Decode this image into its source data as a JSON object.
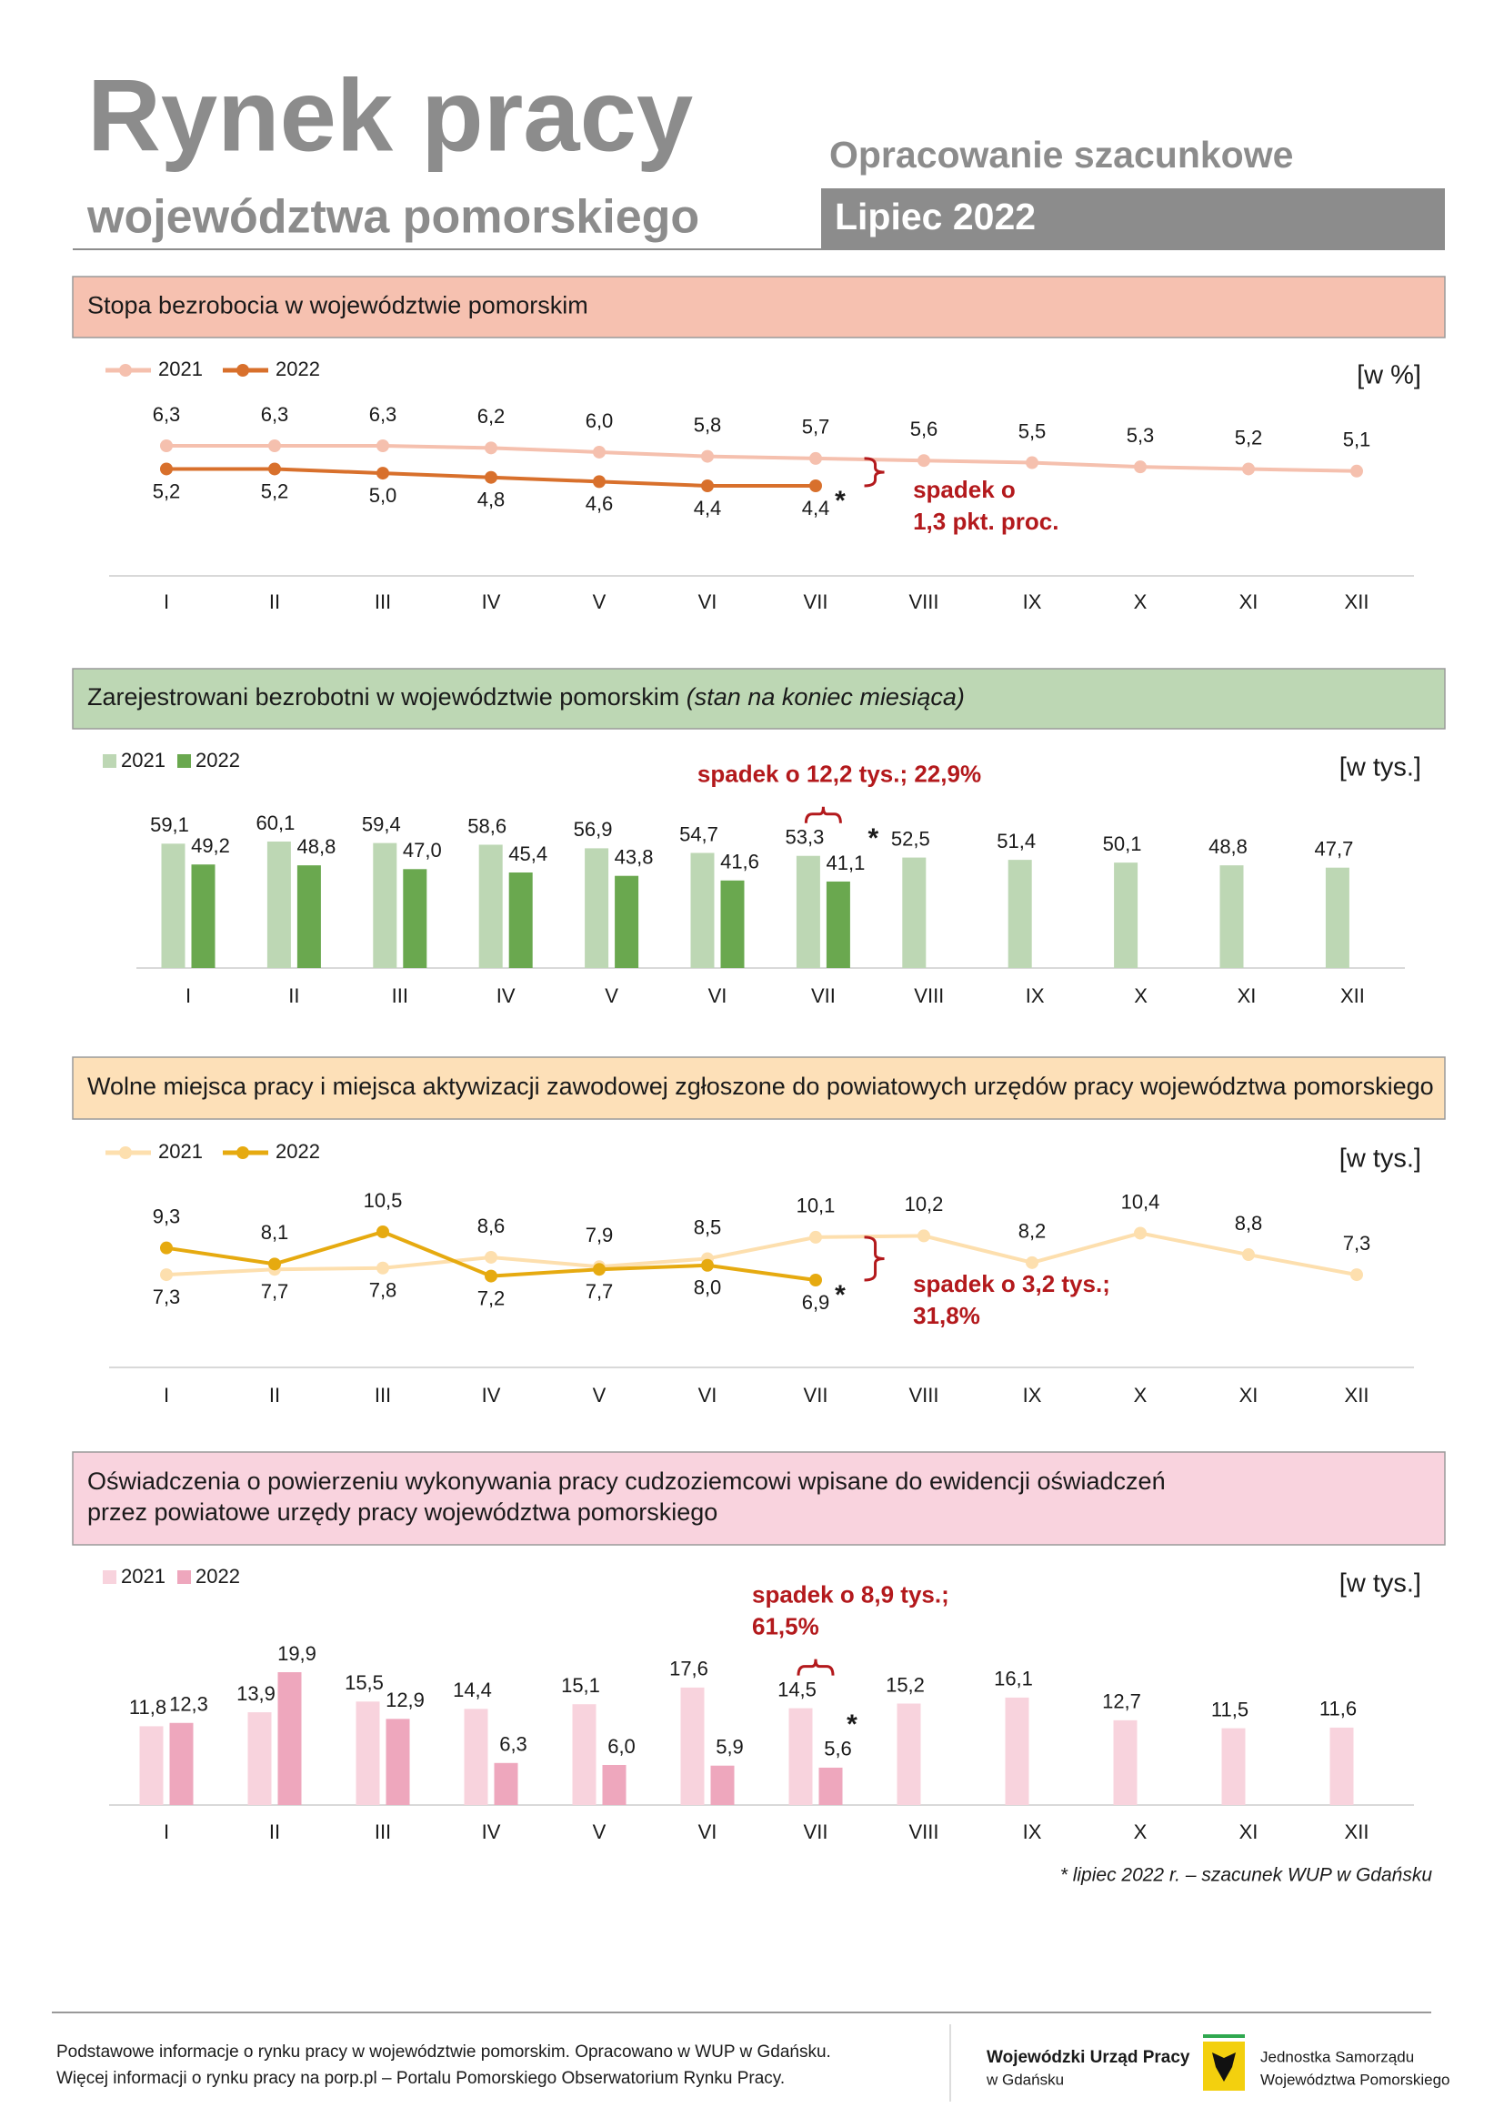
{
  "header": {
    "title": "Rynek pracy",
    "subtitle": "województwa pomorskiego",
    "note": "Opracowanie szacunkowe",
    "period": "Lipiec 2022"
  },
  "chart_data": [
    {
      "type": "line",
      "title": "Stopa bezrobocia w województwie pomorskim",
      "unit": "[w %]",
      "categories": [
        "I",
        "II",
        "III",
        "IV",
        "V",
        "VI",
        "VII",
        "VIII",
        "IX",
        "X",
        "XI",
        "XII"
      ],
      "series": [
        {
          "name": "2021",
          "color": "#f5c0ae",
          "values": [
            6.3,
            6.3,
            6.3,
            6.2,
            6.0,
            5.8,
            5.7,
            5.6,
            5.5,
            5.3,
            5.2,
            5.1
          ],
          "value_labels": [
            "6,3",
            "6,3",
            "6,3",
            "6,2",
            "6,0",
            "5,8",
            "5,7",
            "5,6",
            "5,5",
            "5,3",
            "5,2",
            "5,1"
          ]
        },
        {
          "name": "2022",
          "color": "#d8702c",
          "values": [
            5.2,
            5.2,
            5.0,
            4.8,
            4.6,
            4.4,
            4.4,
            null,
            null,
            null,
            null,
            null
          ],
          "value_labels": [
            "5,2",
            "5,2",
            "5,0",
            "4,8",
            "4,6",
            "4,4",
            "4,4",
            null,
            null,
            null,
            null,
            null
          ]
        }
      ],
      "annotation": [
        "spadek o",
        "1,3 pkt. proc."
      ],
      "marker": "*"
    },
    {
      "type": "bar",
      "title": "Zarejestrowani bezrobotni w województwie pomorskim",
      "title_note": "(stan na koniec miesiąca)",
      "unit": "[w tys.]",
      "categories": [
        "I",
        "II",
        "III",
        "IV",
        "V",
        "VI",
        "VII",
        "VIII",
        "IX",
        "X",
        "XI",
        "XII"
      ],
      "series": [
        {
          "name": "2021",
          "color": "#bdd7b4",
          "values": [
            59.1,
            60.1,
            59.4,
            58.6,
            56.9,
            54.7,
            53.3,
            52.5,
            51.4,
            50.1,
            48.8,
            47.7
          ],
          "value_labels": [
            "59,1",
            "60,1",
            "59,4",
            "58,6",
            "56,9",
            "54,7",
            "53,3",
            "52,5",
            "51,4",
            "50,1",
            "48,8",
            "47,7"
          ]
        },
        {
          "name": "2022",
          "color": "#6aa84f",
          "values": [
            49.2,
            48.8,
            47.0,
            45.4,
            43.8,
            41.6,
            41.1,
            null,
            null,
            null,
            null,
            null
          ],
          "value_labels": [
            "49,2",
            "48,8",
            "47,0",
            "45,4",
            "43,8",
            "41,6",
            "41,1",
            null,
            null,
            null,
            null,
            null
          ]
        }
      ],
      "annotation": [
        "spadek o 12,2 tys.; 22,9%"
      ],
      "marker": "*"
    },
    {
      "type": "line",
      "title": "Wolne miejsca pracy i miejsca aktywizacji zawodowej zgłoszone do powiatowych urzędów pracy województwa pomorskiego",
      "unit": "[w tys.]",
      "categories": [
        "I",
        "II",
        "III",
        "IV",
        "V",
        "VI",
        "VII",
        "VIII",
        "IX",
        "X",
        "XI",
        "XII"
      ],
      "series": [
        {
          "name": "2021",
          "color": "#fddfae",
          "values": [
            7.3,
            7.7,
            7.8,
            8.6,
            7.9,
            8.5,
            10.1,
            10.2,
            8.2,
            10.4,
            8.8,
            7.3
          ],
          "value_labels": [
            "7,3",
            "7,7",
            "7,8",
            "8,6",
            "7,9",
            "8,5",
            "10,1",
            "10,2",
            "8,2",
            "10,4",
            "8,8",
            "7,3"
          ]
        },
        {
          "name": "2022",
          "color": "#e6aa10",
          "values": [
            9.3,
            8.1,
            10.5,
            7.2,
            7.7,
            8.0,
            6.9,
            null,
            null,
            null,
            null,
            null
          ],
          "value_labels": [
            "9,3",
            "8,1",
            "10,5",
            "7,2",
            "7,7",
            "8,0",
            "6,9",
            null,
            null,
            null,
            null,
            null
          ]
        }
      ],
      "annotation": [
        "spadek o 3,2 tys.;",
        "31,8%"
      ],
      "marker": "*"
    },
    {
      "type": "bar",
      "title": [
        "Oświadczenia o powierzeniu wykonywania pracy cudzoziemcowi wpisane do ewidencji oświadczeń",
        "przez powiatowe urzędy pracy województwa pomorskiego"
      ],
      "unit": "[w tys.]",
      "categories": [
        "I",
        "II",
        "III",
        "IV",
        "V",
        "VI",
        "VII",
        "VIII",
        "IX",
        "X",
        "XI",
        "XII"
      ],
      "series": [
        {
          "name": "2021",
          "color": "#f8d3dd",
          "values": [
            11.8,
            13.9,
            15.5,
            14.4,
            15.1,
            17.6,
            14.5,
            15.2,
            16.1,
            12.7,
            11.5,
            11.6
          ],
          "value_labels": [
            "11,8",
            "13,9",
            "15,5",
            "14,4",
            "15,1",
            "17,6",
            "14,5",
            "15,2",
            "16,1",
            "12,7",
            "11,5",
            "11,6"
          ]
        },
        {
          "name": "2022",
          "color": "#eea7bd",
          "values": [
            12.3,
            19.9,
            12.9,
            6.3,
            6.0,
            5.9,
            5.6,
            null,
            null,
            null,
            null,
            null
          ],
          "value_labels": [
            "12,3",
            "19,9",
            "12,9",
            "6,3",
            "6,0",
            "5,9",
            "5,6",
            null,
            null,
            null,
            null,
            null
          ]
        }
      ],
      "annotation": [
        "spadek o 8,9 tys.;",
        "61,5%"
      ],
      "marker": "*"
    }
  ],
  "footnote": "* lipiec 2022 r. – szacunek WUP w Gdańsku",
  "footer": {
    "lines": [
      "Podstawowe informacje o rynku pracy w województwie pomorskim. Opracowano w WUP w Gdańsku.",
      "Więcej informacji o rynku pracy na porp.pl – Portalu Pomorskiego Obserwatorium Rynku Pracy."
    ],
    "org": [
      "Wojewódzki Urząd Pracy",
      "w Gdańsku"
    ],
    "region": [
      "Jednostka Samorządu",
      "Województwa Pomorskiego"
    ]
  }
}
